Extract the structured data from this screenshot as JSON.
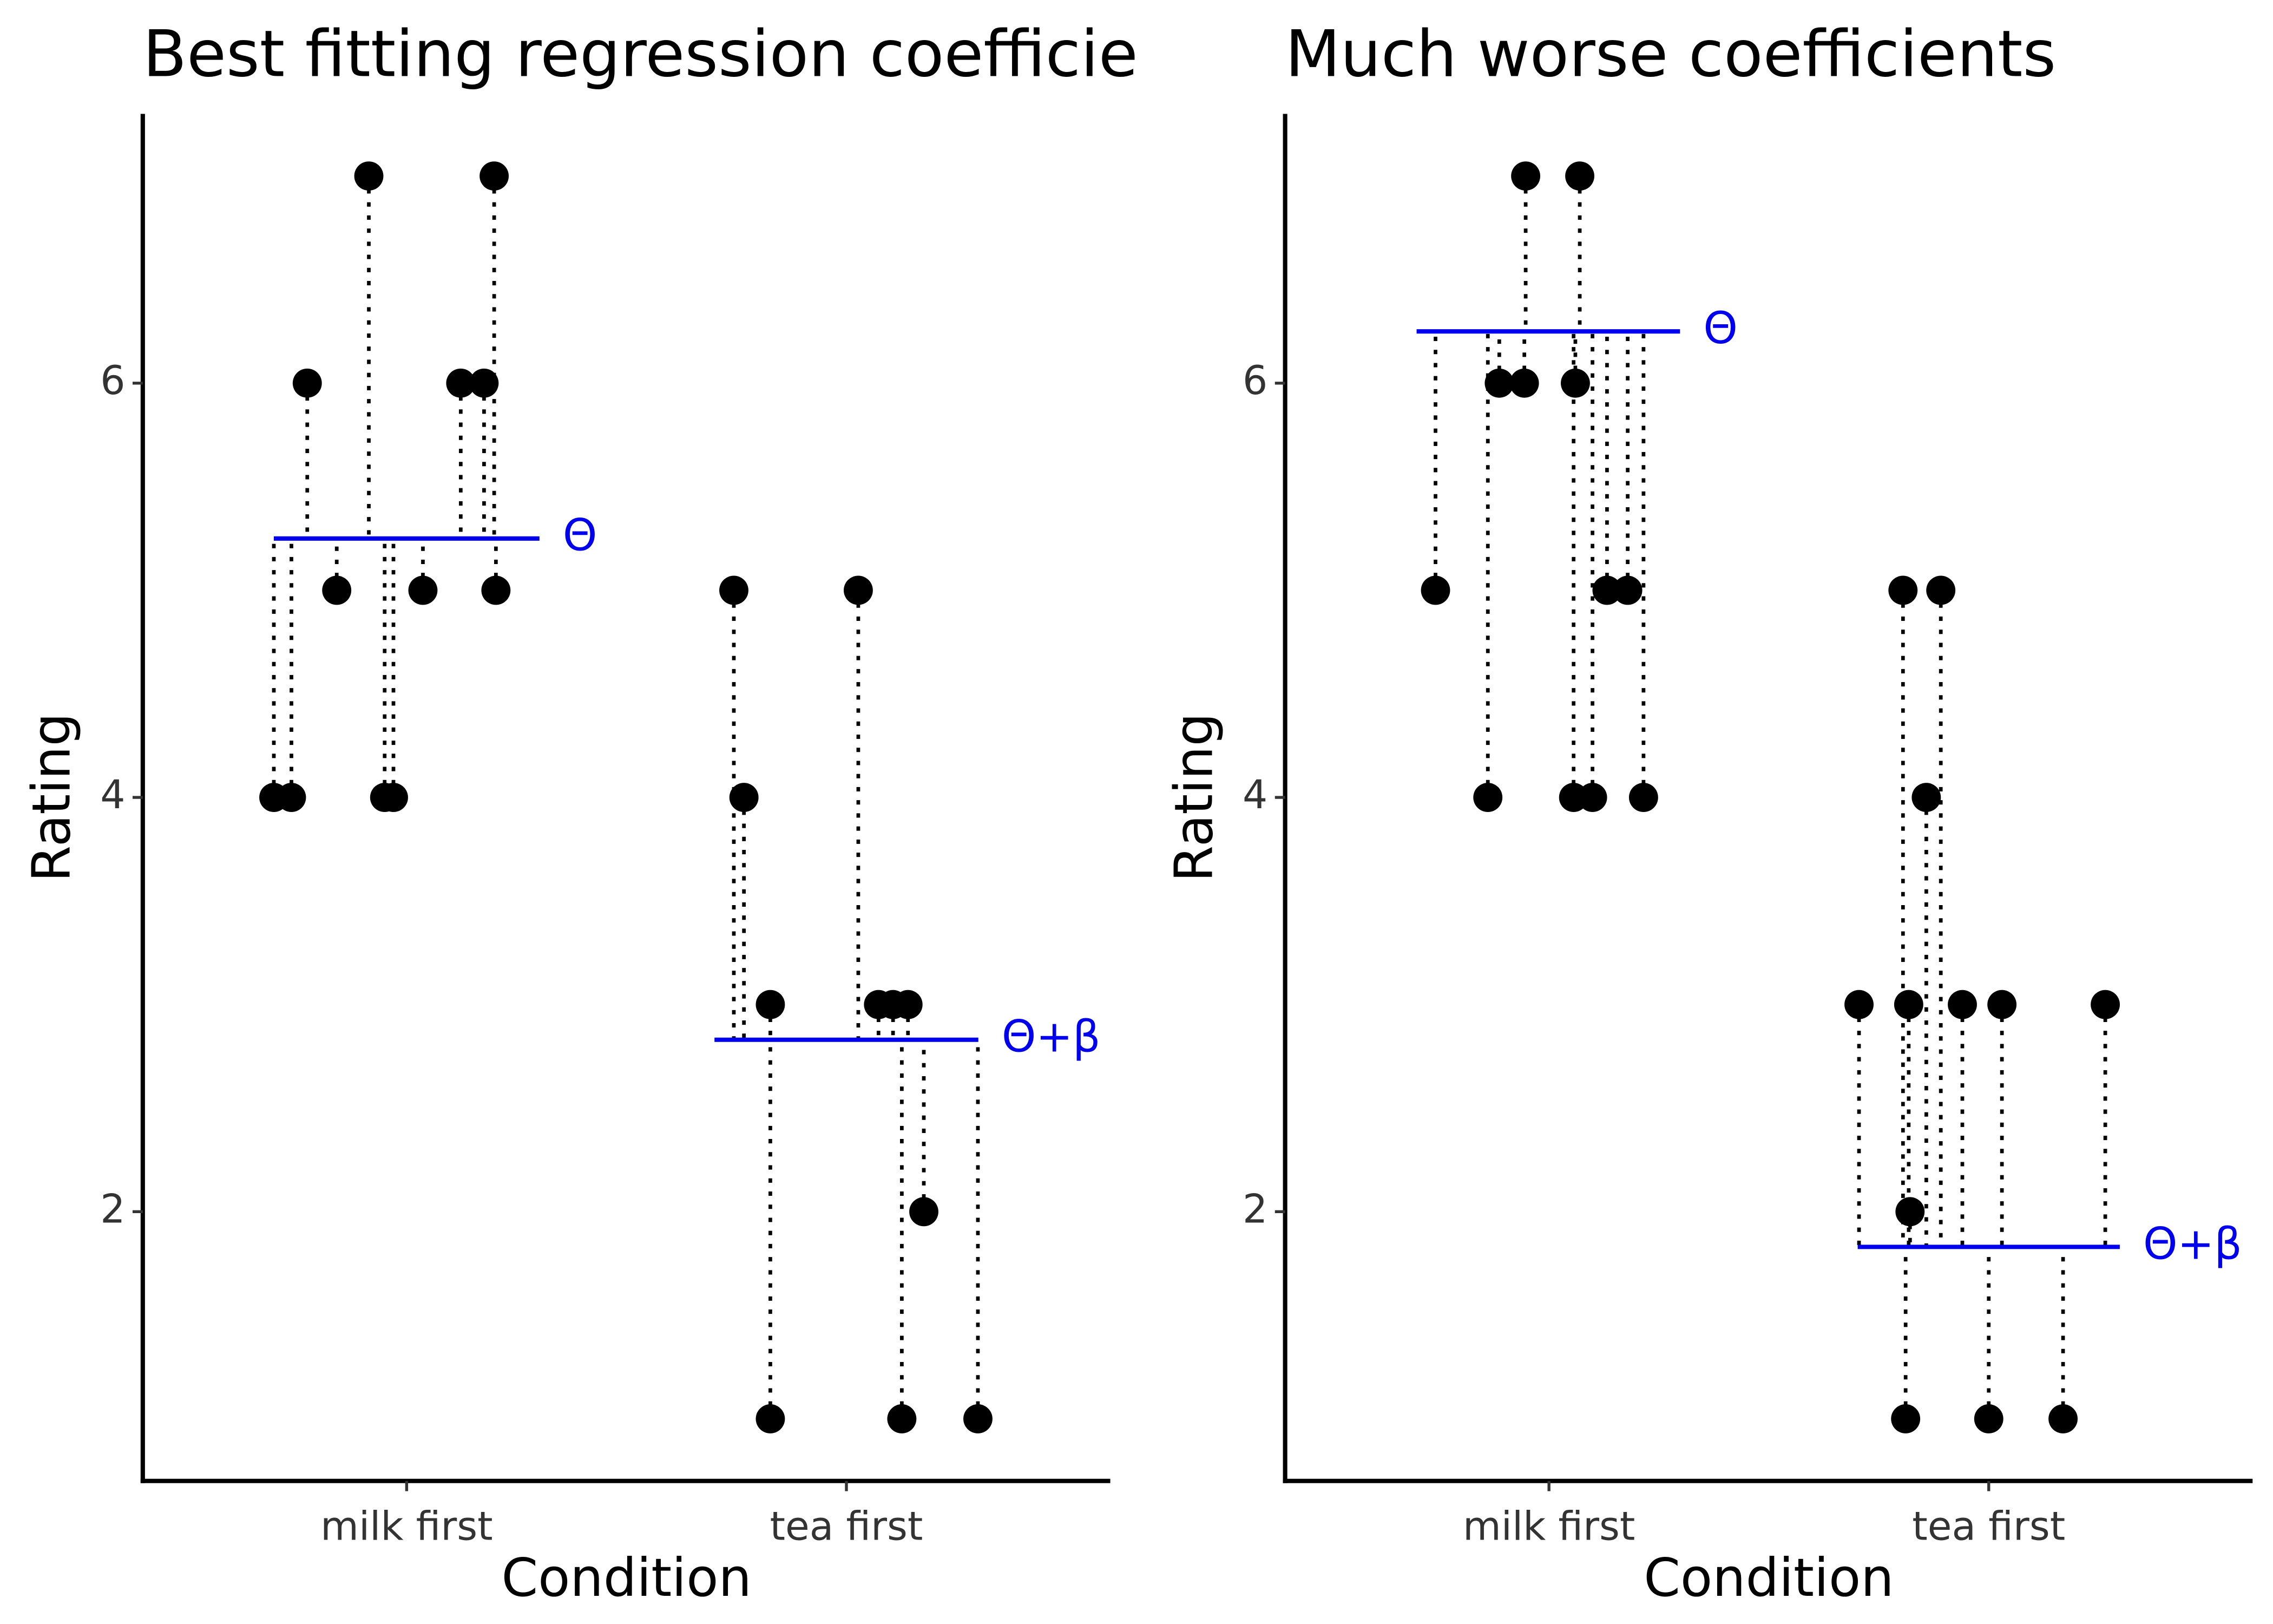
{
  "chart_data": [
    {
      "type": "scatter",
      "title": "Best fitting regression coefficients",
      "xlabel": "Condition",
      "ylabel": "Rating",
      "xlim": [
        0.4,
        2.6
      ],
      "xticks": [
        {
          "value": 1,
          "label": "milk first"
        },
        {
          "value": 2,
          "label": "tea first"
        }
      ],
      "ylim": [
        0.7,
        7.3
      ],
      "yticks": [
        2,
        4,
        6
      ],
      "color": "#000000",
      "series": [
        {
          "x": [
            0.698,
            0.738,
            0.774,
            0.841,
            0.914,
            0.95,
            0.97,
            1.037,
            1.123,
            1.176,
            1.199,
            1.203
          ],
          "values": [
            4,
            4,
            6,
            5,
            7,
            4,
            4,
            5,
            6,
            6,
            7,
            5
          ]
        },
        {
          "x": [
            1.744,
            1.767,
            1.827,
            1.827,
            2.027,
            2.073,
            2.106,
            2.126,
            2.14,
            2.176,
            2.299
          ],
          "values": [
            5,
            4,
            3,
            1,
            5,
            3,
            3,
            1,
            3,
            2,
            1
          ]
        }
      ],
      "lines": [
        {
          "label": "Θ",
          "value": 5.25,
          "x": [
            0.698,
            1.302
          ],
          "color": "#0000ee"
        },
        {
          "label": "Θ+β",
          "value": 2.83,
          "x": [
            1.7,
            2.3
          ],
          "color": "#0000ee"
        }
      ]
    },
    {
      "type": "scatter",
      "title": "Much worse coefficients",
      "xlabel": "Condition",
      "ylabel": "Rating",
      "xlim": [
        0.4,
        2.6
      ],
      "xticks": [
        {
          "value": 1,
          "label": "milk first"
        },
        {
          "value": 2,
          "label": "tea first"
        }
      ],
      "ylim": [
        0.7,
        7.3
      ],
      "yticks": [
        2,
        4,
        6
      ],
      "color": "#000000",
      "series": [
        {
          "x": [
            0.742,
            0.861,
            0.887,
            0.944,
            0.947,
            1.056,
            1.06,
            1.07,
            1.099,
            1.132,
            1.179,
            1.215
          ],
          "values": [
            5,
            4,
            6,
            6,
            7,
            4,
            6,
            7,
            4,
            5,
            5,
            4
          ]
        },
        {
          "x": [
            1.705,
            1.805,
            1.811,
            1.818,
            1.821,
            1.858,
            1.891,
            1.94,
            2.0,
            2.03,
            2.169,
            2.265
          ],
          "values": [
            3,
            5,
            1,
            3,
            2,
            4,
            5,
            3,
            1,
            3,
            1,
            3
          ]
        }
      ],
      "lines": [
        {
          "label": "Θ",
          "value": 6.25,
          "x": [
            0.699,
            1.298
          ],
          "color": "#0000ee"
        },
        {
          "label": "Θ+β",
          "value": 1.83,
          "x": [
            1.702,
            2.298
          ],
          "color": "#0000ee"
        }
      ]
    }
  ]
}
